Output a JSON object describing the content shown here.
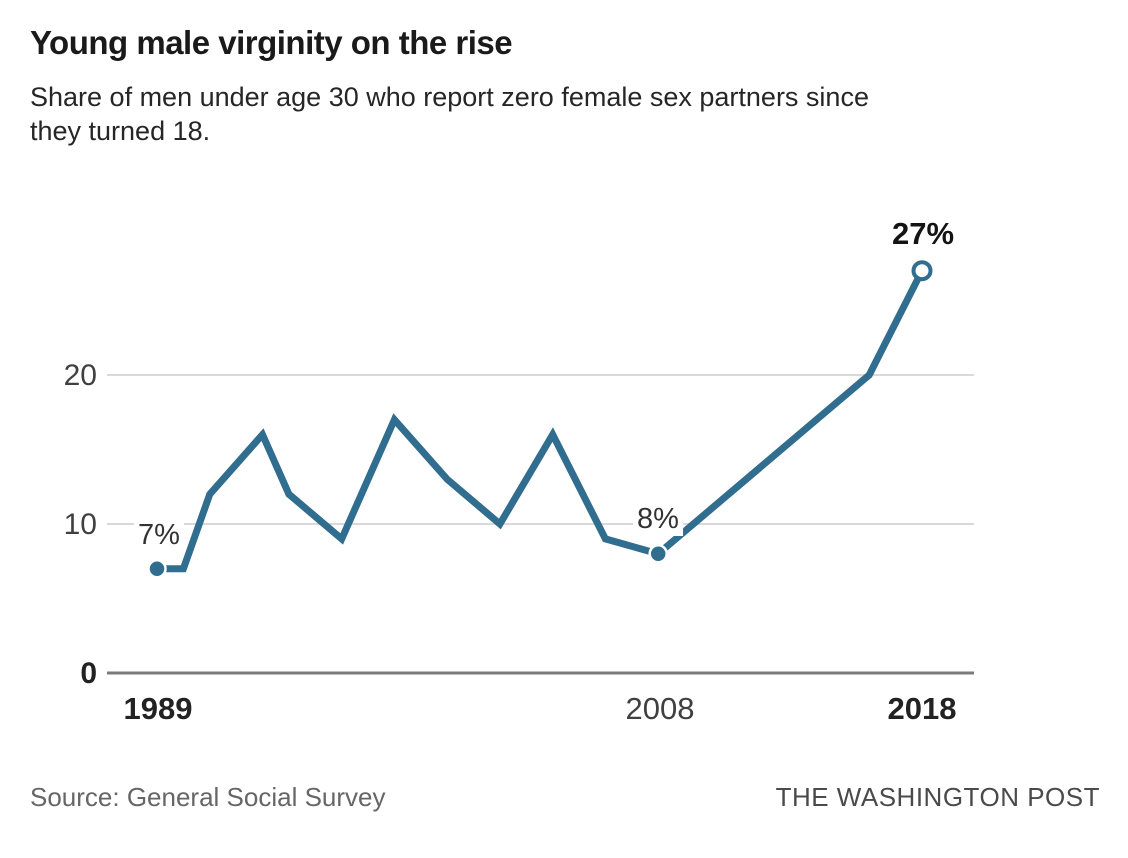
{
  "header": {
    "title": "Young male virginity on the rise",
    "subtitle": "Share of men under age 30 who report zero female sex partners since\nthey turned 18."
  },
  "chart_data": {
    "type": "line",
    "title": "Young male virginity on the rise",
    "subtitle": "Share of men under age 30 who report zero female sex partners since they turned 18.",
    "x": [
      1989,
      1990,
      1991,
      1993,
      1994,
      1996,
      1998,
      2000,
      2002,
      2004,
      2006,
      2008,
      2016,
      2018
    ],
    "values": [
      7,
      7,
      12,
      16,
      12,
      9,
      17,
      13,
      10,
      16,
      9,
      8,
      20,
      27
    ],
    "unit": "%",
    "xlabel": "",
    "ylabel": "",
    "xlim": [
      1989,
      2018
    ],
    "ylim": [
      0,
      30
    ],
    "grid": "horizontal",
    "legend": "none",
    "line_color": "#306d8e",
    "gridline_color": "#d9d9d9",
    "baseline_color": "#7b7b7b",
    "yticks": [
      {
        "value": 20,
        "label": "20",
        "bold": false
      },
      {
        "value": 10,
        "label": "10",
        "bold": false
      },
      {
        "value": 0,
        "label": "0",
        "bold": true
      }
    ],
    "xticks": [
      {
        "year": 1989,
        "label": "1989",
        "bold": true
      },
      {
        "year": 2008,
        "label": "2008",
        "bold": false
      },
      {
        "year": 2018,
        "label": "2018",
        "bold": true
      }
    ],
    "annotated_points": [
      {
        "year": 1989,
        "value": 7,
        "label": "7%",
        "marker": "filled-dot"
      },
      {
        "year": 2008,
        "value": 8,
        "label": "8%",
        "marker": "filled-dot"
      },
      {
        "year": 2018,
        "value": 27,
        "label": "27%",
        "marker": "open-dot"
      }
    ]
  },
  "footer": {
    "source": "Source: General Social Survey",
    "credit": "THE WASHINGTON POST"
  }
}
